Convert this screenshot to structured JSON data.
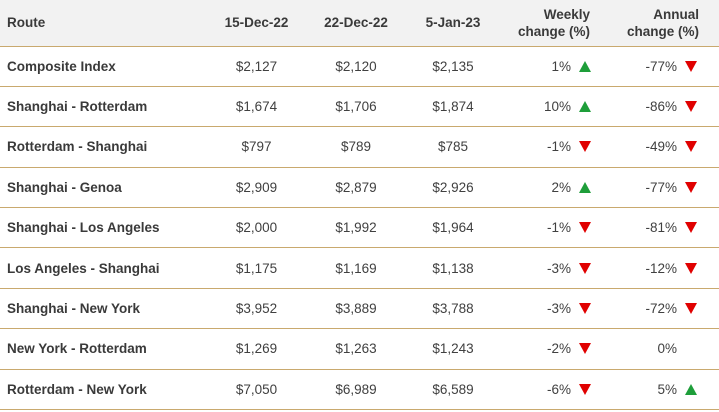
{
  "headers": {
    "route": "Route",
    "d1": "15-Dec-22",
    "d2": "22-Dec-22",
    "d3": "5-Jan-23",
    "weekly_l1": "Weekly",
    "weekly_l2": "change (%)",
    "annual_l1": "Annual",
    "annual_l2": "change (%)"
  },
  "colors": {
    "up": "#1e9e3a",
    "down": "#e00000",
    "rule": "#c9a96e",
    "header_bg": "#f2f2f2"
  },
  "rows": [
    {
      "route": "Composite Index",
      "d1": "$2,127",
      "d2": "$2,120",
      "d3": "$2,135",
      "weekly": "1%",
      "weekly_dir": "up",
      "annual": "-77%",
      "annual_dir": "down"
    },
    {
      "route": "Shanghai - Rotterdam",
      "d1": "$1,674",
      "d2": "$1,706",
      "d3": "$1,874",
      "weekly": "10%",
      "weekly_dir": "up",
      "annual": "-86%",
      "annual_dir": "down"
    },
    {
      "route": "Rotterdam - Shanghai",
      "d1": "$797",
      "d2": "$789",
      "d3": "$785",
      "weekly": "-1%",
      "weekly_dir": "down",
      "annual": "-49%",
      "annual_dir": "down"
    },
    {
      "route": "Shanghai - Genoa",
      "d1": "$2,909",
      "d2": "$2,879",
      "d3": "$2,926",
      "weekly": "2%",
      "weekly_dir": "up",
      "annual": "-77%",
      "annual_dir": "down"
    },
    {
      "route": "Shanghai - Los Angeles",
      "d1": "$2,000",
      "d2": "$1,992",
      "d3": "$1,964",
      "weekly": "-1%",
      "weekly_dir": "down",
      "annual": "-81%",
      "annual_dir": "down"
    },
    {
      "route": "Los Angeles - Shanghai",
      "d1": "$1,175",
      "d2": "$1,169",
      "d3": "$1,138",
      "weekly": "-3%",
      "weekly_dir": "down",
      "annual": "-12%",
      "annual_dir": "down"
    },
    {
      "route": "Shanghai - New York",
      "d1": "$3,952",
      "d2": "$3,889",
      "d3": "$3,788",
      "weekly": "-3%",
      "weekly_dir": "down",
      "annual": "-72%",
      "annual_dir": "down"
    },
    {
      "route": "New York - Rotterdam",
      "d1": "$1,269",
      "d2": "$1,263",
      "d3": "$1,243",
      "weekly": "-2%",
      "weekly_dir": "down",
      "annual": "0%",
      "annual_dir": "none"
    },
    {
      "route": "Rotterdam - New York",
      "d1": "$7,050",
      "d2": "$6,989",
      "d3": "$6,589",
      "weekly": "-6%",
      "weekly_dir": "down",
      "annual": "5%",
      "annual_dir": "up"
    }
  ]
}
